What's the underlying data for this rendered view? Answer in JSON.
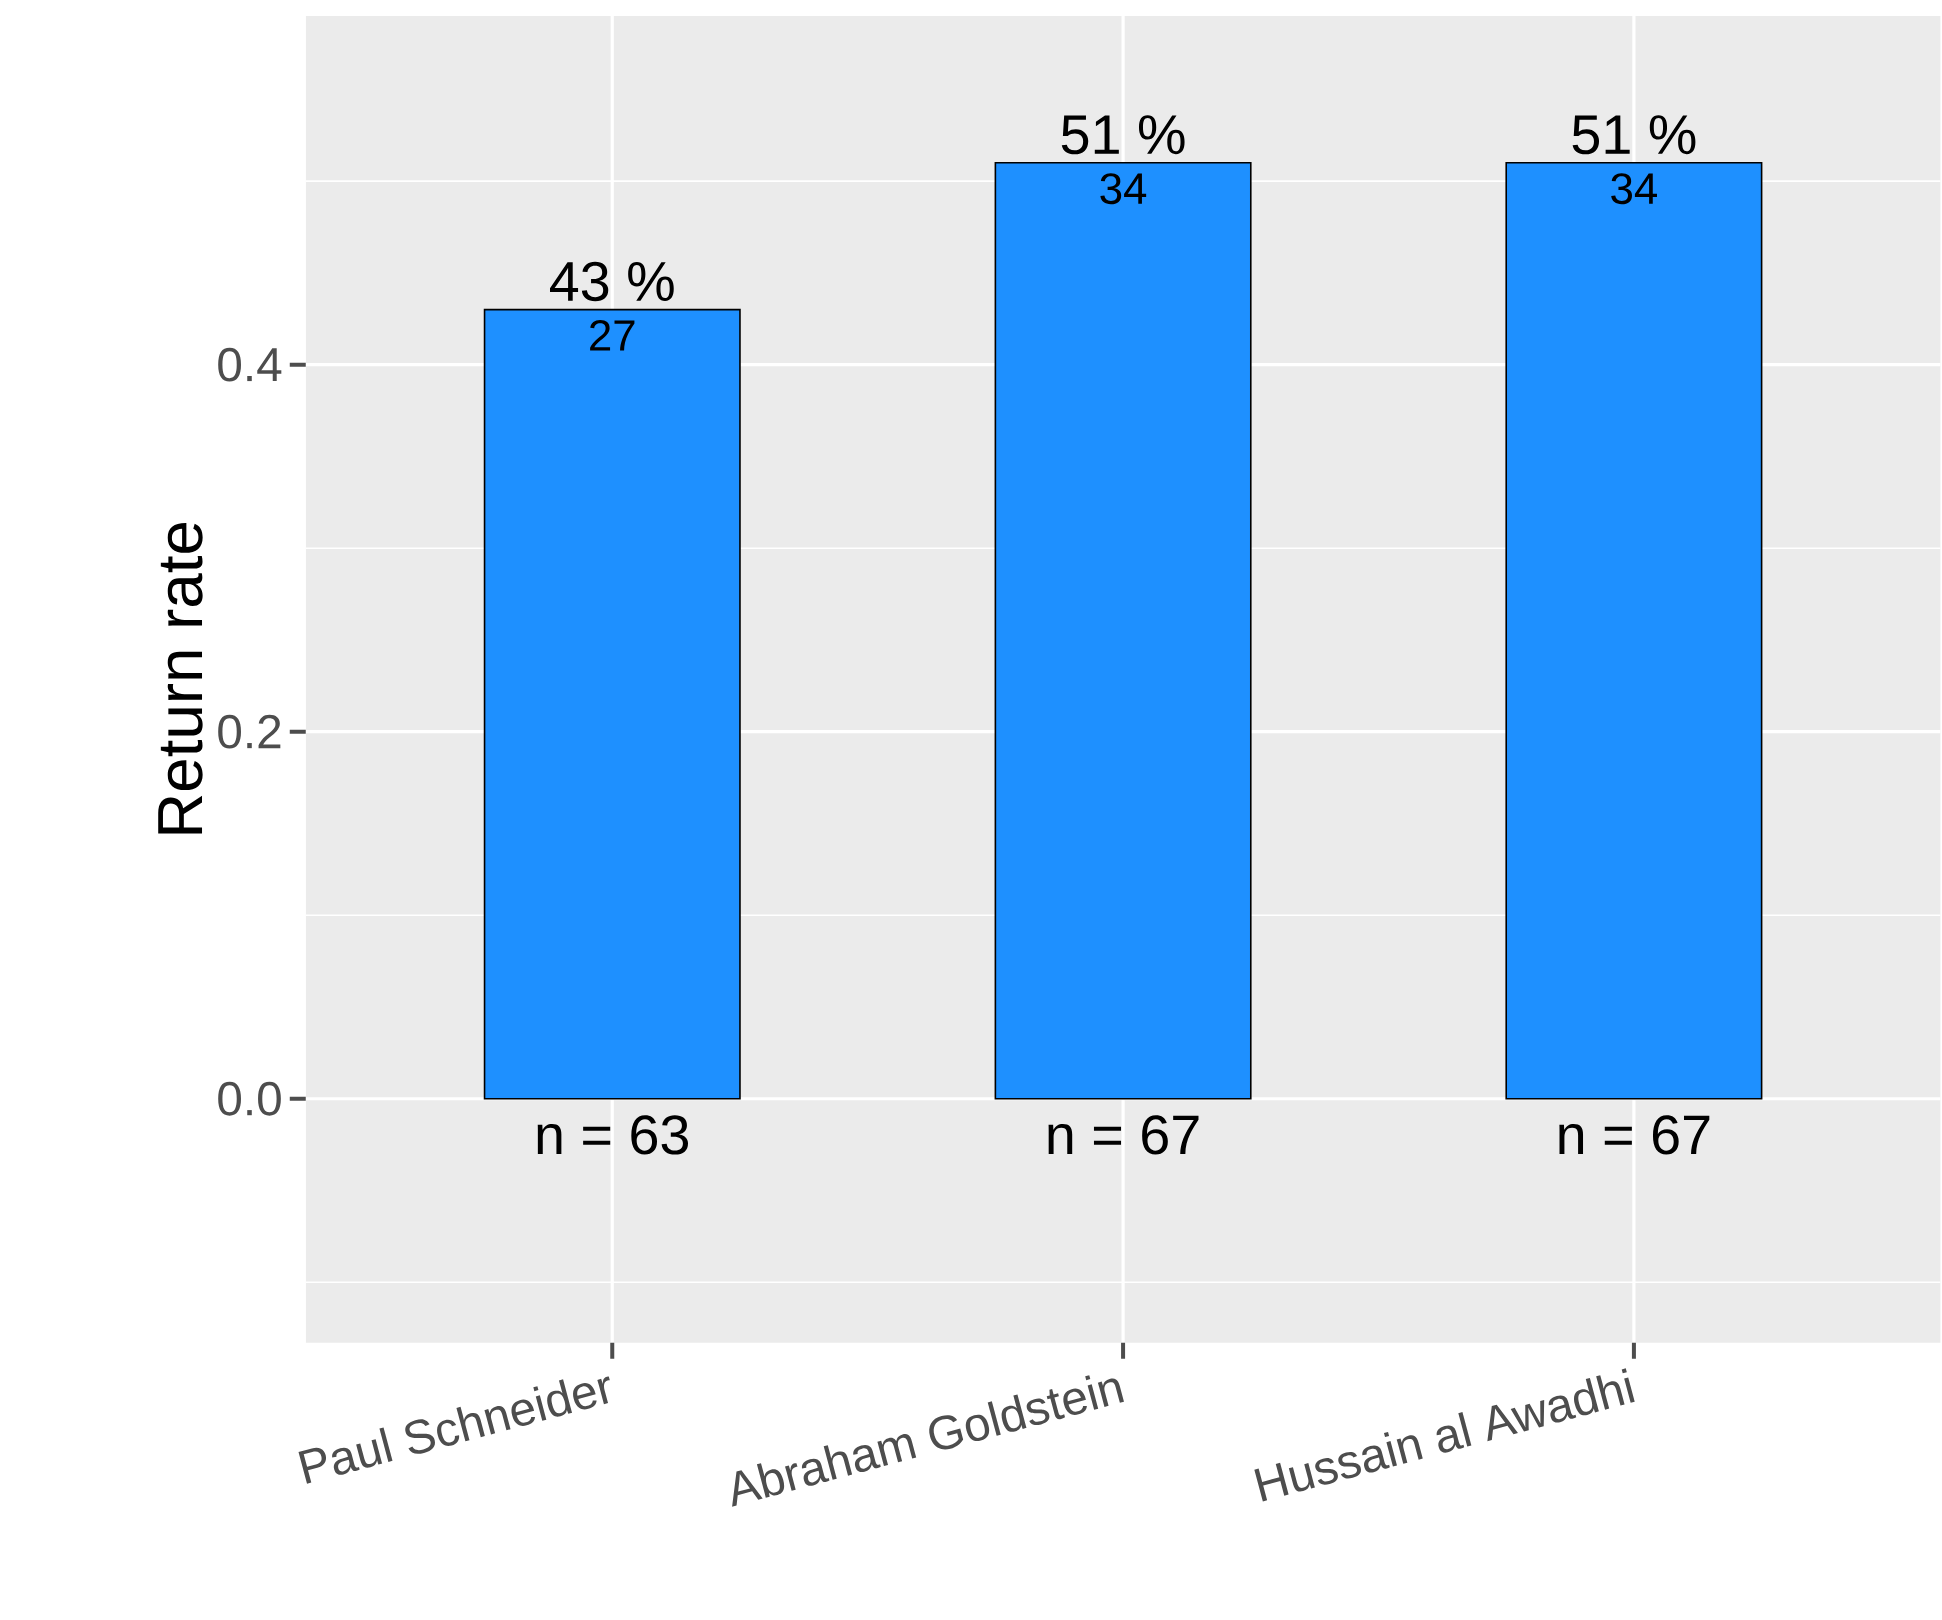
{
  "chart_data": {
    "type": "bar",
    "ylabel": "Return rate",
    "categories": [
      "Paul Schneider",
      "Abraham Goldstein",
      "Hussain al Awadhi"
    ],
    "values": [
      0.43,
      0.51,
      0.51
    ],
    "color": "#1e90ff",
    "value_labels": [
      "43 %",
      "51 %",
      "51 %"
    ],
    "annotations": [
      "27",
      "34",
      "34",
      "n = 63",
      "n = 67",
      "n = 67"
    ],
    "ylim": [
      -0.133,
      0.59
    ],
    "yticks": [
      {
        "value": 0,
        "label": "0.0"
      },
      {
        "value": 0.2,
        "label": "0.2"
      },
      {
        "value": 0.4,
        "label": "0.4"
      }
    ],
    "grid": true
  }
}
